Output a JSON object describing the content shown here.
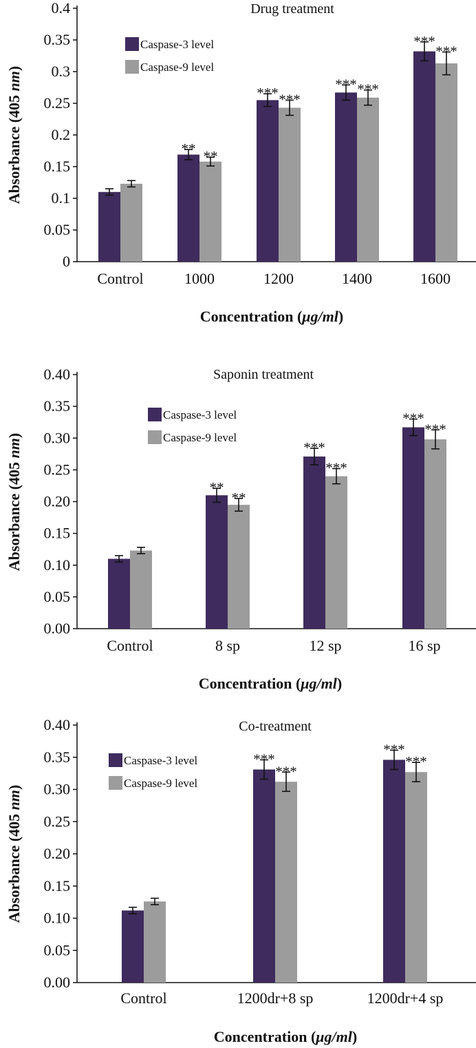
{
  "colors": {
    "caspase3": "#3f2b5d",
    "caspase9": "#9c9c9c"
  },
  "chart_data": [
    {
      "type": "bar",
      "title": "Drug treatment",
      "xlabel": {
        "main": "Concentration (",
        "unit": "μg/ml",
        "close": ")"
      },
      "ylabel": {
        "main": "Absorbance (405 ",
        "unit": "nm",
        "close": ")"
      },
      "ylim": [
        0,
        0.4
      ],
      "yticks": [
        "0",
        "0.05",
        "0.1",
        "0.15",
        "0.2",
        "0.25",
        "0.3",
        "0.35",
        "0.4"
      ],
      "categories": [
        "Control",
        "1000",
        "1200",
        "1400",
        "1600"
      ],
      "legend_position": "top-left",
      "series": [
        {
          "name": "Caspase-3 level",
          "values": [
            0.11,
            0.169,
            0.255,
            0.267,
            0.332
          ],
          "errors": [
            0.005,
            0.008,
            0.01,
            0.012,
            0.015
          ],
          "sig": [
            "",
            "**",
            "***",
            "***",
            "***"
          ]
        },
        {
          "name": "Caspase-9 level",
          "values": [
            0.123,
            0.158,
            0.243,
            0.259,
            0.313
          ],
          "errors": [
            0.005,
            0.007,
            0.012,
            0.012,
            0.018
          ],
          "sig": [
            "",
            "**",
            "***",
            "***",
            "***"
          ]
        }
      ]
    },
    {
      "type": "bar",
      "title": "Saponin treatment",
      "xlabel": {
        "main": "Concentration (",
        "unit": "μg/ml",
        "close": ")"
      },
      "ylabel": {
        "main": "Absorbance (405 ",
        "unit": "nm",
        "close": ")"
      },
      "ylim": [
        0,
        0.4
      ],
      "yticks": [
        "0.00",
        "0.05",
        "0.10",
        "0.15",
        "0.20",
        "0.25",
        "0.30",
        "0.35",
        "0.40"
      ],
      "categories": [
        "Control",
        "8 sp",
        "12 sp",
        "16 sp"
      ],
      "legend_position": "top-left",
      "series": [
        {
          "name": "Caspase-3 level",
          "values": [
            0.11,
            0.21,
            0.271,
            0.317
          ],
          "errors": [
            0.005,
            0.011,
            0.013,
            0.013
          ],
          "sig": [
            "",
            "**",
            "***",
            "***"
          ]
        },
        {
          "name": "Caspase-9 level",
          "values": [
            0.123,
            0.195,
            0.24,
            0.298
          ],
          "errors": [
            0.005,
            0.01,
            0.012,
            0.015
          ],
          "sig": [
            "",
            "**",
            "***",
            "***"
          ]
        }
      ]
    },
    {
      "type": "bar",
      "title": "Co-treatment",
      "xlabel": {
        "main": "Concentration (",
        "unit": "μg/ml",
        "close": ")"
      },
      "ylabel": {
        "main": "Absorbance (405 ",
        "unit": "nm",
        "close": ")"
      },
      "ylim": [
        0,
        0.4
      ],
      "yticks": [
        "0.00",
        "0.05",
        "0.10",
        "0.15",
        "0.20",
        "0.25",
        "0.30",
        "0.35",
        "0.40"
      ],
      "categories": [
        "Control",
        "1200dr+8 sp",
        "1200dr+4 sp"
      ],
      "legend_position": "top-left",
      "series": [
        {
          "name": "Caspase-3 level",
          "values": [
            0.112,
            0.331,
            0.346
          ],
          "errors": [
            0.005,
            0.015,
            0.015
          ],
          "sig": [
            "",
            "***",
            "***"
          ]
        },
        {
          "name": "Caspase-9 level",
          "values": [
            0.126,
            0.312,
            0.327
          ],
          "errors": [
            0.005,
            0.015,
            0.015
          ],
          "sig": [
            "",
            "***",
            "***"
          ]
        }
      ]
    }
  ]
}
